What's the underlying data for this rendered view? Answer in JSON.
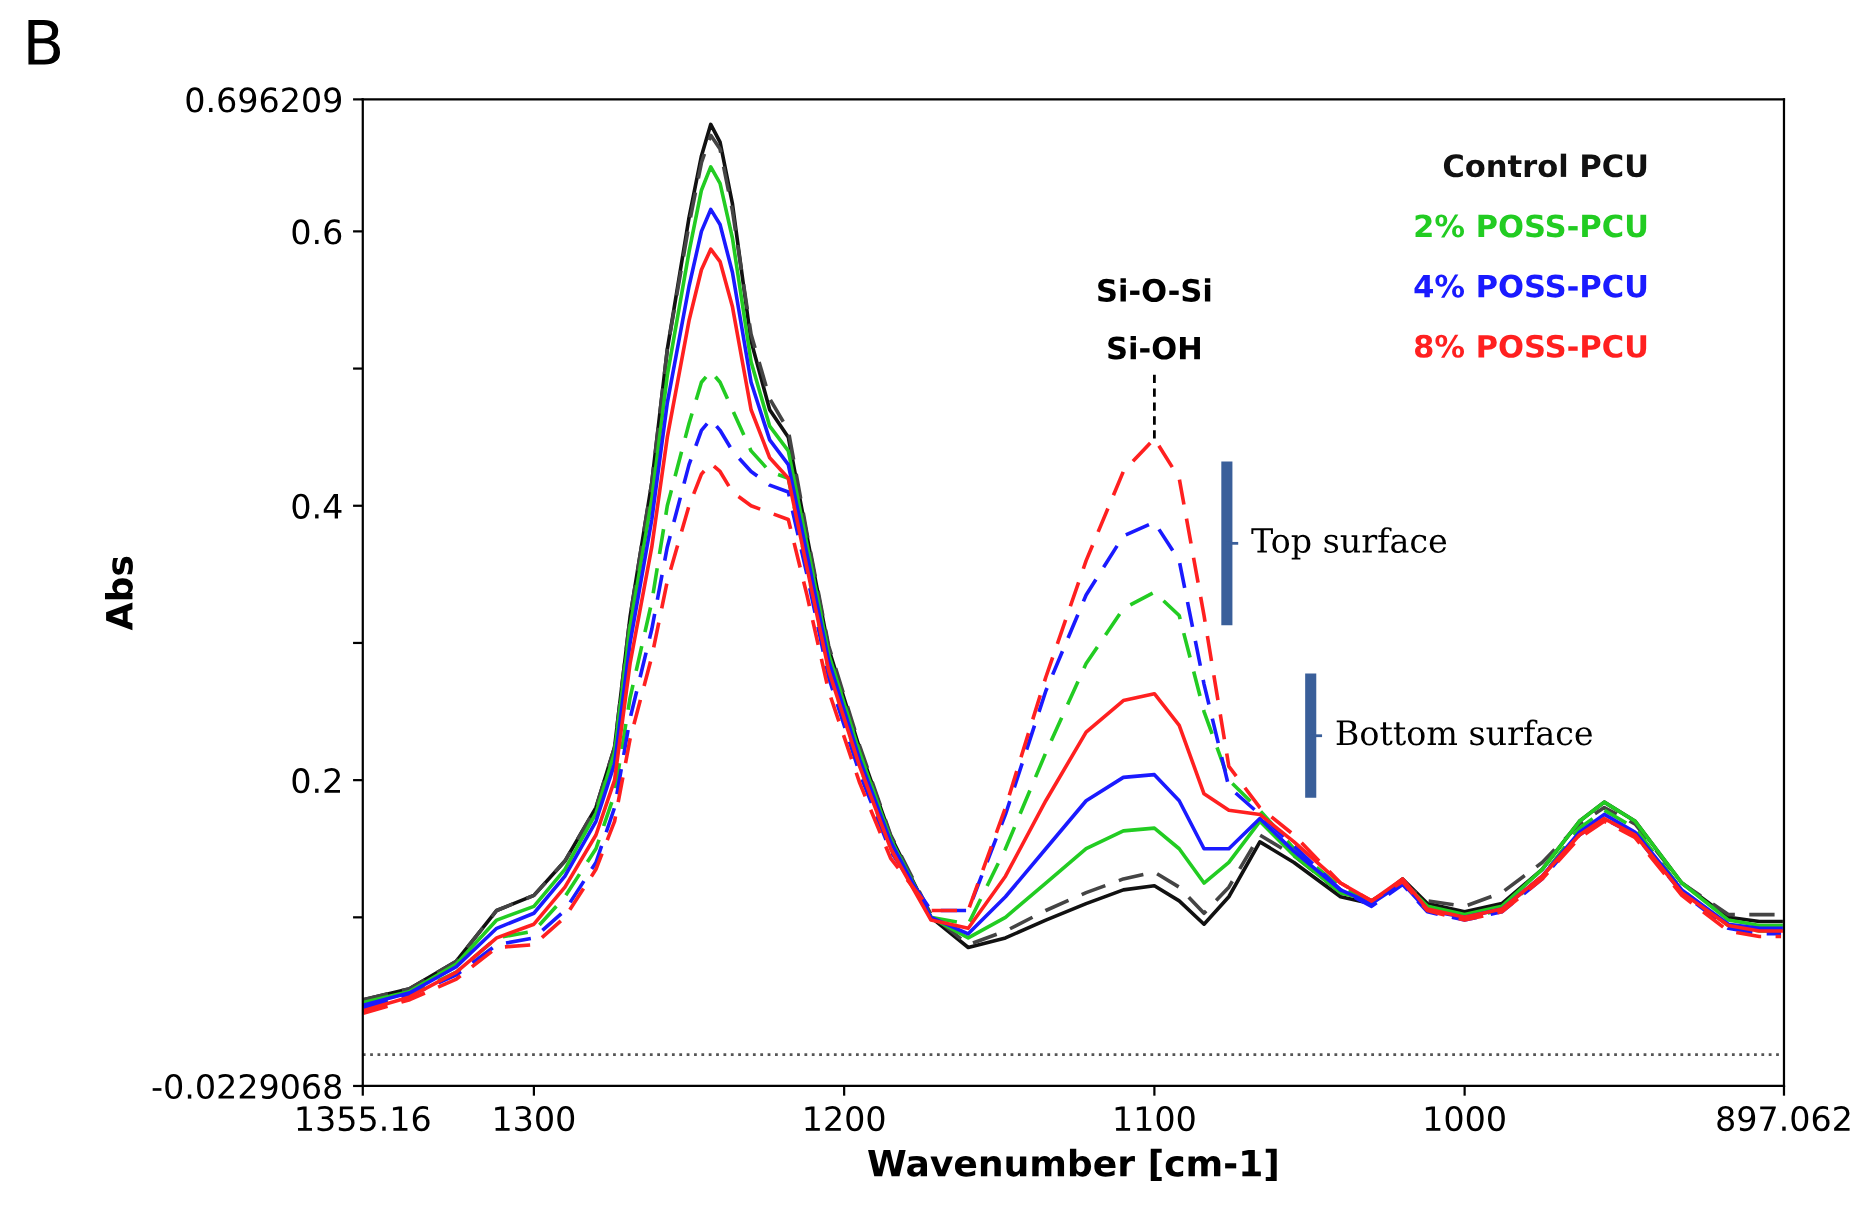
{
  "chart_data": {
    "type": "line",
    "xlabel": "Wavenumber [cm-1]",
    "ylabel": "Abs",
    "x": [
      1355,
      1340,
      1325,
      1312,
      1300,
      1290,
      1280,
      1274,
      1269,
      1262,
      1257,
      1250,
      1246,
      1243,
      1240,
      1236,
      1230,
      1224,
      1218,
      1212,
      1205,
      1195,
      1185,
      1172,
      1160,
      1148,
      1135,
      1122,
      1110,
      1100,
      1092,
      1084,
      1076,
      1066,
      1055,
      1040,
      1030,
      1020,
      1012,
      1000,
      988,
      975,
      963,
      955,
      945,
      930,
      915,
      905,
      898
    ],
    "series": [
      {
        "name": "Control PCU",
        "color": "#111111",
        "line_style": "solid",
        "values": [
          0.04,
          0.048,
          0.068,
          0.105,
          0.116,
          0.141,
          0.18,
          0.224,
          0.319,
          0.417,
          0.514,
          0.61,
          0.655,
          0.678,
          0.665,
          0.62,
          0.52,
          0.47,
          0.45,
          0.378,
          0.296,
          0.223,
          0.159,
          0.1,
          0.078,
          0.085,
          0.098,
          0.11,
          0.12,
          0.123,
          0.112,
          0.095,
          0.115,
          0.155,
          0.14,
          0.115,
          0.11,
          0.128,
          0.11,
          0.104,
          0.11,
          0.135,
          0.17,
          0.184,
          0.17,
          0.125,
          0.1,
          0.097,
          0.097
        ]
      },
      {
        "color": "#444444",
        "line_style": "dashed",
        "values": [
          0.04,
          0.048,
          0.068,
          0.105,
          0.116,
          0.141,
          0.18,
          0.224,
          0.319,
          0.417,
          0.514,
          0.605,
          0.65,
          0.67,
          0.66,
          0.615,
          0.525,
          0.478,
          0.455,
          0.38,
          0.298,
          0.225,
          0.16,
          0.102,
          0.08,
          0.09,
          0.105,
          0.118,
          0.128,
          0.133,
          0.122,
          0.103,
          0.122,
          0.16,
          0.145,
          0.118,
          0.112,
          0.125,
          0.112,
          0.108,
          0.118,
          0.14,
          0.168,
          0.18,
          0.168,
          0.125,
          0.102,
          0.102,
          0.102
        ]
      },
      {
        "name": "2% POSS-PCU",
        "color": "#22cc22",
        "line_style": "solid",
        "values": [
          0.038,
          0.046,
          0.066,
          0.098,
          0.108,
          0.135,
          0.176,
          0.22,
          0.312,
          0.405,
          0.495,
          0.585,
          0.63,
          0.647,
          0.635,
          0.595,
          0.505,
          0.458,
          0.44,
          0.372,
          0.292,
          0.22,
          0.157,
          0.1,
          0.085,
          0.1,
          0.125,
          0.15,
          0.163,
          0.165,
          0.15,
          0.125,
          0.14,
          0.17,
          0.145,
          0.118,
          0.112,
          0.126,
          0.108,
          0.102,
          0.108,
          0.135,
          0.17,
          0.184,
          0.17,
          0.125,
          0.098,
          0.094,
          0.094
        ]
      },
      {
        "color": "#22cc22",
        "line_style": "dashed",
        "values": [
          0.035,
          0.044,
          0.06,
          0.085,
          0.09,
          0.115,
          0.15,
          0.19,
          0.26,
          0.33,
          0.4,
          0.46,
          0.49,
          0.498,
          0.49,
          0.47,
          0.44,
          0.425,
          0.42,
          0.355,
          0.28,
          0.21,
          0.15,
          0.1,
          0.095,
          0.15,
          0.22,
          0.285,
          0.325,
          0.337,
          0.32,
          0.25,
          0.2,
          0.178,
          0.15,
          0.122,
          0.112,
          0.126,
          0.108,
          0.1,
          0.105,
          0.13,
          0.165,
          0.178,
          0.165,
          0.12,
          0.094,
          0.09,
          0.09
        ]
      },
      {
        "name": "4% POSS-PCU",
        "color": "#1a1aff",
        "line_style": "solid",
        "values": [
          0.036,
          0.045,
          0.064,
          0.092,
          0.103,
          0.13,
          0.17,
          0.212,
          0.3,
          0.39,
          0.475,
          0.56,
          0.6,
          0.616,
          0.605,
          0.57,
          0.49,
          0.448,
          0.43,
          0.365,
          0.287,
          0.215,
          0.155,
          0.1,
          0.088,
          0.115,
          0.15,
          0.185,
          0.202,
          0.204,
          0.185,
          0.15,
          0.15,
          0.172,
          0.148,
          0.12,
          0.11,
          0.125,
          0.105,
          0.1,
          0.106,
          0.13,
          0.162,
          0.175,
          0.162,
          0.12,
          0.095,
          0.092,
          0.092
        ]
      },
      {
        "color": "#1a1aff",
        "line_style": "dashed",
        "values": [
          0.034,
          0.043,
          0.058,
          0.08,
          0.085,
          0.105,
          0.14,
          0.18,
          0.245,
          0.31,
          0.37,
          0.43,
          0.455,
          0.463,
          0.455,
          0.44,
          0.425,
          0.415,
          0.41,
          0.35,
          0.275,
          0.205,
          0.148,
          0.105,
          0.105,
          0.175,
          0.265,
          0.335,
          0.378,
          0.388,
          0.36,
          0.27,
          0.195,
          0.175,
          0.152,
          0.12,
          0.108,
          0.124,
          0.104,
          0.098,
          0.104,
          0.128,
          0.16,
          0.172,
          0.16,
          0.118,
          0.092,
          0.088,
          0.088
        ]
      },
      {
        "name": "8% POSS-PCU",
        "color": "#ff2020",
        "line_style": "solid",
        "values": [
          0.032,
          0.042,
          0.06,
          0.085,
          0.095,
          0.122,
          0.16,
          0.2,
          0.285,
          0.37,
          0.45,
          0.535,
          0.572,
          0.587,
          0.578,
          0.545,
          0.47,
          0.435,
          0.42,
          0.355,
          0.28,
          0.21,
          0.15,
          0.098,
          0.092,
          0.13,
          0.185,
          0.235,
          0.258,
          0.263,
          0.24,
          0.19,
          0.178,
          0.175,
          0.155,
          0.125,
          0.112,
          0.128,
          0.106,
          0.1,
          0.106,
          0.13,
          0.16,
          0.172,
          0.16,
          0.118,
          0.094,
          0.09,
          0.09
        ]
      },
      {
        "color": "#ff2020",
        "line_style": "dashed",
        "values": [
          0.03,
          0.04,
          0.055,
          0.078,
          0.08,
          0.1,
          0.135,
          0.17,
          0.23,
          0.29,
          0.345,
          0.4,
          0.423,
          0.431,
          0.425,
          0.41,
          0.4,
          0.395,
          0.39,
          0.335,
          0.265,
          0.198,
          0.143,
          0.105,
          0.105,
          0.18,
          0.275,
          0.36,
          0.425,
          0.449,
          0.42,
          0.32,
          0.21,
          0.18,
          0.16,
          0.125,
          0.112,
          0.126,
          0.105,
          0.098,
          0.104,
          0.128,
          0.158,
          0.17,
          0.158,
          0.116,
          0.09,
          0.086,
          0.086
        ]
      }
    ],
    "xlim": [
      1355.16,
      897.062
    ],
    "ylim": [
      -0.0229068,
      0.696209
    ],
    "xticks": [
      1355.16,
      1300,
      1200,
      1100,
      1000,
      897.062
    ],
    "yticks": [
      -0.0229068,
      {
        "value": 0.1,
        "label": null
      },
      0.2,
      {
        "value": 0.3,
        "label": null
      },
      0.4,
      {
        "value": 0.5,
        "label": null
      },
      0.6,
      0.696209
    ],
    "ref_lines": [
      {
        "axis": "y",
        "value": 0,
        "color": "#555555",
        "line_style": "dotted"
      }
    ],
    "legend": "top right",
    "grid": false,
    "annotations": [
      "B",
      "Si-O-Si",
      {
        "text": "Si-OH",
        "x": 1100,
        "y": 0.449
      },
      "Top surface",
      "Bottom surface"
    ]
  }
}
